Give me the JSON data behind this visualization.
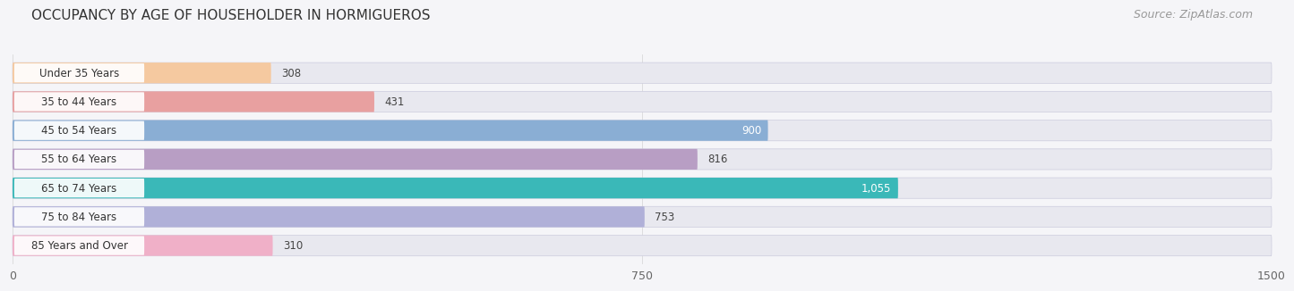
{
  "title": "OCCUPANCY BY AGE OF HOUSEHOLDER IN HORMIGUEROS",
  "source": "Source: ZipAtlas.com",
  "categories": [
    "Under 35 Years",
    "35 to 44 Years",
    "45 to 54 Years",
    "55 to 64 Years",
    "65 to 74 Years",
    "75 to 84 Years",
    "85 Years and Over"
  ],
  "values": [
    308,
    431,
    900,
    816,
    1055,
    753,
    310
  ],
  "bar_colors": [
    "#f5c9a0",
    "#e8a0a0",
    "#8aaed4",
    "#b89ec4",
    "#3ab8b8",
    "#b0b0d8",
    "#f0b0c8"
  ],
  "label_colors": [
    "#444444",
    "#444444",
    "#ffffff",
    "#444444",
    "#ffffff",
    "#444444",
    "#444444"
  ],
  "value_labels": [
    "308",
    "431",
    "900",
    "816",
    "1,055",
    "753",
    "310"
  ],
  "xlim": [
    0,
    1500
  ],
  "xticks": [
    0,
    750,
    1500
  ],
  "bg_color": "#f5f5f8",
  "bar_bg_color": "#e8e8ef",
  "label_pill_color": "#ffffff",
  "title_fontsize": 11,
  "source_fontsize": 9,
  "tick_fontsize": 9,
  "bar_fontsize": 8.5
}
